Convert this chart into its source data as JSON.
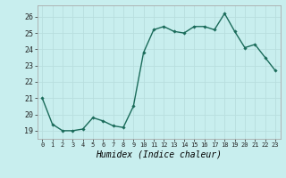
{
  "x": [
    0,
    1,
    2,
    3,
    4,
    5,
    6,
    7,
    8,
    9,
    10,
    11,
    12,
    13,
    14,
    15,
    16,
    17,
    18,
    19,
    20,
    21,
    22,
    23
  ],
  "y": [
    21.0,
    19.4,
    19.0,
    19.0,
    19.1,
    19.8,
    19.6,
    19.3,
    19.2,
    20.5,
    23.8,
    25.2,
    25.4,
    25.1,
    25.0,
    25.4,
    25.4,
    25.2,
    26.2,
    25.1,
    24.1,
    24.3,
    23.5,
    22.7
  ],
  "line_color": "#1a6b5a",
  "marker": "D",
  "marker_size": 1.8,
  "line_width": 1.0,
  "xlabel": "Humidex (Indice chaleur)",
  "xlabel_fontsize": 7,
  "xtick_labels": [
    "0",
    "1",
    "2",
    "3",
    "4",
    "5",
    "6",
    "7",
    "8",
    "9",
    "10",
    "11",
    "12",
    "13",
    "14",
    "15",
    "16",
    "17",
    "18",
    "19",
    "20",
    "21",
    "22",
    "23"
  ],
  "ytick_values": [
    19,
    20,
    21,
    22,
    23,
    24,
    25,
    26
  ],
  "ylim": [
    18.5,
    26.7
  ],
  "xlim": [
    -0.5,
    23.5
  ],
  "background_color": "#c8eeee",
  "grid_color": "#b8dede",
  "spine_color": "#aaaaaa"
}
